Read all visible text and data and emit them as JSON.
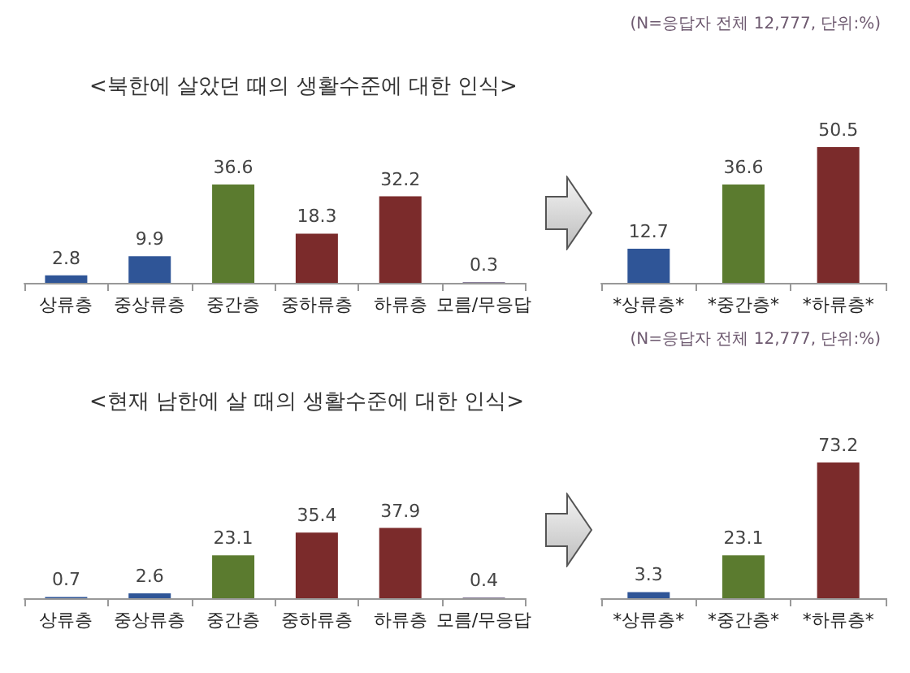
{
  "chart_data": [
    {
      "type": "bar",
      "title": "<북한에 살았던 때의 생활수준에 대한 인식>",
      "categories": [
        "상류층",
        "중상류층",
        "중간층",
        "중하류층",
        "하류층",
        "모름/무응답"
      ],
      "values": [
        2.8,
        9.9,
        36.6,
        18.3,
        32.2,
        0.3
      ],
      "colors": [
        "#2f5597",
        "#2f5597",
        "#5b7b2f",
        "#7b2b2b",
        "#7b2b2b",
        "#8a7f9a"
      ],
      "data_labels": true
    },
    {
      "type": "bar",
      "annotations": [
        "(N=응답자 전체 12,777, 단위:%)"
      ],
      "categories": [
        "*상류층*",
        "*중간층*",
        "*하류층*"
      ],
      "values": [
        12.7,
        36.6,
        50.5
      ],
      "colors": [
        "#2f5597",
        "#5b7b2f",
        "#7b2b2b"
      ],
      "data_labels": true
    },
    {
      "type": "bar",
      "title": "<현재 남한에 살 때의 생활수준에 대한 인식>",
      "categories": [
        "상류층",
        "중상류층",
        "중간층",
        "중하류층",
        "하류층",
        "모름/무응답"
      ],
      "values": [
        0.7,
        2.6,
        23.1,
        35.4,
        37.9,
        0.4
      ],
      "colors": [
        "#2f5597",
        "#2f5597",
        "#5b7b2f",
        "#7b2b2b",
        "#7b2b2b",
        "#8a7f9a"
      ],
      "data_labels": true
    },
    {
      "type": "bar",
      "annotations": [
        "(N=응답자 전체 12,777, 단위:%)"
      ],
      "categories": [
        "*상류층*",
        "*중간층*",
        "*하류층*"
      ],
      "values": [
        3.3,
        23.1,
        73.2
      ],
      "colors": [
        "#2f5597",
        "#5b7b2f",
        "#7b2b2b"
      ],
      "data_labels": true
    }
  ]
}
